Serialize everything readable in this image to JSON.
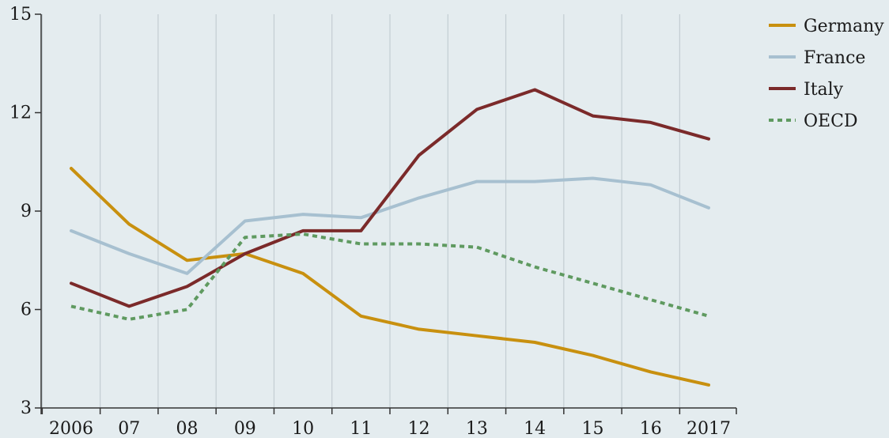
{
  "chart_data": {
    "type": "line",
    "x": [
      "2006",
      "07",
      "08",
      "09",
      "10",
      "11",
      "12",
      "13",
      "14",
      "15",
      "16",
      "2017"
    ],
    "ylim": [
      3,
      15
    ],
    "yticks": [
      3,
      6,
      9,
      12,
      15
    ],
    "grid": "vertical",
    "legend_position": "right",
    "series": [
      {
        "name": "Germany",
        "color": "#c8900f",
        "style": "solid",
        "values": [
          10.3,
          8.6,
          7.5,
          7.7,
          7.1,
          5.8,
          5.4,
          5.2,
          5.0,
          4.6,
          4.1,
          3.7
        ]
      },
      {
        "name": "France",
        "color": "#a7c0d0",
        "style": "solid",
        "values": [
          8.4,
          7.7,
          7.1,
          8.7,
          8.9,
          8.8,
          9.4,
          9.9,
          9.9,
          10.0,
          9.8,
          9.1
        ]
      },
      {
        "name": "Italy",
        "color": "#7b2a2a",
        "style": "solid",
        "values": [
          6.8,
          6.1,
          6.7,
          7.7,
          8.4,
          8.4,
          10.7,
          12.1,
          12.7,
          11.9,
          11.7,
          11.2
        ]
      },
      {
        "name": "OECD",
        "color": "#5f9a60",
        "style": "dotted",
        "values": [
          6.1,
          5.7,
          6.0,
          8.2,
          8.3,
          8.0,
          8.0,
          7.9,
          7.3,
          6.8,
          6.3,
          5.8
        ]
      }
    ]
  }
}
